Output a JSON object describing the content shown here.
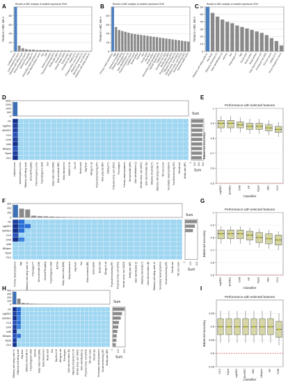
{
  "panels": {
    "A": "A",
    "B": "B",
    "C": "C",
    "D": "D",
    "E": "E",
    "F": "F",
    "G": "G",
    "H": "H",
    "I": "I"
  },
  "chart_data": [
    {
      "id": "A",
      "type": "bar",
      "title": "Results of ABC analysis of variable importance SVM",
      "ylabel": "Times in ABC set A",
      "ylim": [
        0,
        100
      ],
      "yticks": [
        0,
        20,
        40,
        60,
        80
      ],
      "highlight_color": "#4a7fc1",
      "bar_color": "#8a8a8a",
      "categories": [
        "Lobbied score",
        "Land-frequency score",
        "Olfactory self rating scale",
        "Pheno-frequency score",
        "General FA quality",
        "Phenotype PT",
        "Secondary nasal symptoms",
        "Odor discrimination score",
        "Sex",
        "ERI",
        "Roles of physical",
        "Physical functioning (PF)",
        "Bodily pain (BP)",
        "House dust",
        "Mental health (MH)",
        "Grass pollen",
        "Emotional role (RE)",
        "Vitality (VT)",
        "Physical comp. sum (PCS)",
        "Olfactory threshold (T)",
        "Mental comp. sum (MCS)",
        "Olfactory self rating scale #1"
      ],
      "values": [
        100,
        13,
        7,
        5,
        4,
        4,
        3,
        3,
        3,
        3,
        2,
        2,
        2,
        2,
        2,
        2,
        1,
        1,
        1,
        1,
        1,
        1
      ]
    },
    {
      "id": "B",
      "type": "bar",
      "title": "Results of ABC analysis of variable importance SVM",
      "ylabel": "Times in ABC set A",
      "ylim": [
        0,
        100
      ],
      "yticks": [
        0,
        20,
        40,
        60,
        80
      ],
      "highlight_color": "#4a7fc1",
      "bar_color": "#8a8a8a",
      "categories": [
        "Primary nasal symptoms",
        "Age",
        "General FA quality",
        "Olfactory self rating",
        "Phenotype PT",
        "Odor identification (I)",
        "Pheno-frequency score",
        "Lobbied score",
        "Nasal airflow",
        "Asthma",
        "Sex",
        "House dust",
        "Hay fever",
        "Grass pollen",
        "Secondary nasal symptoms",
        "Mental health (MH)",
        "Vitality (VT)",
        "Emotional role (RE)",
        "Bodily pain (BP)",
        "Physical functioning (PF)",
        "Olfactory threshold (T)",
        "Mental comp. sum (MCS)",
        "Physical comp. sum (PCS)",
        "Social functioning (SF)",
        "General health (GH)"
      ],
      "values": [
        100,
        55,
        48,
        46,
        44,
        42,
        40,
        39,
        38,
        37,
        36,
        35,
        34,
        33,
        32,
        31,
        30,
        29,
        28,
        27,
        26,
        25,
        24,
        23,
        22
      ]
    },
    {
      "id": "C",
      "type": "bar",
      "title": "Results of ABC analysis of variable importance SVM",
      "ylabel": "Times in ABC set A",
      "ylim": [
        0,
        60
      ],
      "yticks": [
        0,
        10,
        20,
        30,
        40,
        50,
        60
      ],
      "highlight_color": "#4a7fc1",
      "bar_color": "#8a8a8a",
      "categories": [
        "Olfactory self rating scale #1",
        "Hay fever",
        "Olfactory threshold (T)",
        "Odor identification (I)",
        "Asthma",
        "Sex",
        "Phenotype PT",
        "Age",
        "House dust",
        "Grass pollen",
        "Nasal airflow",
        "Odor discrimination (D)",
        "Emotional role (RE)",
        "TDI sum score",
        "Vitality (VT)",
        "Pheno-frequency score"
      ],
      "values": [
        60,
        52,
        47,
        43,
        40,
        38,
        35,
        33,
        31,
        29,
        27,
        25,
        22,
        18,
        14,
        8
      ]
    },
    {
      "id": "D",
      "type": "heatmap",
      "sum_label": "Sum",
      "rows": [
        "RF",
        "logREG",
        "BinREG",
        "C4.5",
        "SVM",
        "kNN",
        "NBayes",
        "Rpart",
        "C5.0"
      ],
      "yticks": [
        0,
        500,
        1000,
        2000,
        5000
      ],
      "columns": [
        "Lobbied score",
        "Land-frequency score",
        "Olfactory self rating scale",
        "General FA quality",
        "Pheno-frequency score",
        "Psychological in ASA",
        "Sex",
        "Body mass index (BMI)",
        "Role-emotional (RE)",
        "Early blossomers",
        "BMI/DTJX ID",
        "Sex #2",
        "House dust",
        "Hay fever",
        "Allergy to cat",
        "Physical functioning (PF)",
        "Role-physical (RP)",
        "Vitality (VT)",
        "Physical comp. sum (PCS)",
        "Phenotypes",
        "Primary nasal symptoms",
        "Mental health (MH)",
        "Odor identification (I)",
        "Mental comp. sum (MCS)",
        "Odor discrimination (D)",
        "Olfactory threshold (T)",
        "Olfactory self rating scale #1",
        "TDI sum score",
        "Secondary nasal symptoms",
        "Social functioning (SF)",
        "Steroid use",
        "Bodily pain (BP)"
      ],
      "highlighted_column_values": [
        9,
        9,
        9,
        9,
        9,
        9,
        9,
        9,
        9
      ],
      "column_sums": [
        5000,
        40,
        30,
        20,
        15,
        12,
        10,
        8,
        6,
        5,
        4,
        4,
        3,
        3,
        3,
        2,
        2,
        2,
        2,
        2,
        2,
        1,
        1,
        1,
        1,
        1,
        1,
        1,
        1,
        1,
        1,
        1
      ],
      "row_sums": [
        900,
        880,
        860,
        850,
        840,
        830,
        820,
        810,
        800
      ],
      "row_sum_ticks": [
        "0",
        "300",
        "600",
        "900"
      ]
    },
    {
      "id": "E",
      "type": "box",
      "title": "Performance with selected features",
      "xlabel": "Classifier",
      "ylabel": "Balanced accuracy",
      "ylim": [
        0.5,
        1.0
      ],
      "yticks": [
        0.5,
        0.6,
        0.7,
        0.8,
        0.9,
        1.0
      ],
      "chance_level": 0.5,
      "categories": [
        "logREG",
        "BinREG",
        "SVM",
        "RF",
        "Rpart",
        "kNN",
        "C5.0"
      ],
      "medians": [
        0.9,
        0.9,
        0.89,
        0.88,
        0.88,
        0.87,
        0.86
      ],
      "q1": [
        0.87,
        0.87,
        0.87,
        0.86,
        0.86,
        0.85,
        0.84
      ],
      "q3": [
        0.92,
        0.92,
        0.91,
        0.9,
        0.9,
        0.89,
        0.88
      ],
      "whisker_low": [
        0.84,
        0.84,
        0.84,
        0.83,
        0.83,
        0.82,
        0.81
      ],
      "whisker_high": [
        0.95,
        0.95,
        0.94,
        0.93,
        0.93,
        0.92,
        0.91
      ]
    },
    {
      "id": "F",
      "type": "heatmap",
      "sum_label": "Sum",
      "rows": [
        "RF",
        "logREG",
        "BinREG",
        "C4.5",
        "SVM",
        "kNN",
        "NBayes",
        "Rpart",
        "C5.0"
      ],
      "yticks": [
        0,
        100,
        200,
        300
      ],
      "columns": [
        "Primary nasal symptoms",
        "Age",
        "Olfactory self rating scale #1",
        "Phenotype PT",
        "General health (GH)",
        "General FA quality",
        "Psychological in ASA",
        "Asthma",
        "Body mass index (BMI)",
        "Early blossomers",
        "Hay fever",
        "Sex",
        "Role-emotional (RE)",
        "Grass pollen",
        "House dust",
        "Allergy to cat",
        "Physical functioning (PF)",
        "Physical comp. sum (PCS)",
        "Mental comp. sum (MCS)",
        "Bodily pain (BP)",
        "Odor identification (I)",
        "Olfactory threshold (T)",
        "Odor discrimination (D)",
        "Olfactory self rating scale #1",
        "Secondary nasal symptoms",
        "Social functioning (SF)",
        "Steroid use",
        "TDI sum score"
      ],
      "column_sums": [
        300,
        210,
        190,
        40,
        30,
        25,
        20,
        15,
        12,
        10,
        8,
        7,
        6,
        5,
        5,
        4,
        4,
        3,
        3,
        3,
        2,
        2,
        2,
        2,
        1,
        1,
        1,
        1
      ],
      "row_sums": [
        300,
        250,
        200,
        10,
        5,
        5,
        3,
        2,
        2
      ],
      "row_sum_ticks": [
        "0",
        "100",
        "200"
      ]
    },
    {
      "id": "G",
      "type": "box",
      "title": "Performance with selected features",
      "xlabel": "Classifier",
      "ylabel": "Balanced accuracy",
      "ylim": [
        0.5,
        1.0
      ],
      "yticks": [
        0.5,
        0.6,
        0.7,
        0.8,
        0.9,
        1.0
      ],
      "chance_level": 0.5,
      "categories": [
        "logREG",
        "BinREG",
        "SVM",
        "RF",
        "Rpart",
        "kNN",
        "C5.0"
      ],
      "medians": [
        0.83,
        0.83,
        0.83,
        0.82,
        0.8,
        0.79,
        0.78
      ],
      "q1": [
        0.79,
        0.79,
        0.79,
        0.78,
        0.76,
        0.75,
        0.74
      ],
      "q3": [
        0.86,
        0.86,
        0.86,
        0.85,
        0.84,
        0.83,
        0.82
      ],
      "whisker_low": [
        0.75,
        0.75,
        0.75,
        0.74,
        0.72,
        0.71,
        0.7
      ],
      "whisker_high": [
        0.89,
        0.89,
        0.89,
        0.88,
        0.87,
        0.86,
        0.85
      ]
    },
    {
      "id": "H",
      "type": "heatmap",
      "sum_label": "Sum",
      "rows": [
        "RF",
        "logREG",
        "BinREG",
        "C4.5",
        "SVM",
        "kNN",
        "NBayes",
        "Rpart",
        "C5.0"
      ],
      "yticks": [
        0,
        100,
        200,
        300,
        400
      ],
      "columns": [
        "Olfactory self rating scale #1",
        "Olfactory self rating scale",
        "Hay fever",
        "Olfactory threshold (T)",
        "Psychological in ASA",
        "Asthma",
        "Body mass index (BMI)",
        "Early blossomers",
        "House dust",
        "Sex",
        "Hay fever #2",
        "Allergy to cat",
        "Phenotypes",
        "Odor discrimination (D)",
        "Olfactory threshold (T) #2",
        "Mental comp. sum (MCS)",
        "Odor identification (I)",
        "Physical comp. sum (PCS)",
        "TDI sum score",
        "Steroid use",
        "Secondary nasal symptoms",
        "Social functioning (SF)",
        "Bodily pain (BP)"
      ],
      "column_sums": [
        400,
        180,
        40,
        30,
        20,
        15,
        12,
        10,
        8,
        7,
        6,
        5,
        4,
        4,
        3,
        3,
        3,
        2,
        2,
        2,
        1,
        1,
        1
      ],
      "row_sums": [
        380,
        300,
        260,
        200,
        180,
        150,
        130,
        120,
        100
      ],
      "row_sum_ticks": [
        "0",
        "100",
        "200"
      ]
    },
    {
      "id": "I",
      "type": "box",
      "title": "Performance with selected features",
      "xlabel": "Classifier",
      "ylabel": "Balanced accuracy",
      "ylim": [
        0.45,
        0.7
      ],
      "yticks": [
        0.45,
        0.5,
        0.55,
        0.6,
        0.65
      ],
      "chance_level": 0.5,
      "categories": [
        "C5.0",
        "Rpart",
        "logREG",
        "BinREG",
        "kNN",
        "NBayes",
        "RF",
        "SVM"
      ],
      "medians": [
        0.6,
        0.6,
        0.6,
        0.6,
        0.6,
        0.6,
        0.6,
        0.59
      ],
      "q1": [
        0.57,
        0.57,
        0.57,
        0.57,
        0.57,
        0.57,
        0.57,
        0.56
      ],
      "q3": [
        0.63,
        0.63,
        0.63,
        0.63,
        0.63,
        0.63,
        0.63,
        0.62
      ],
      "whisker_low": [
        0.54,
        0.54,
        0.54,
        0.54,
        0.54,
        0.54,
        0.54,
        0.53
      ],
      "whisker_high": [
        0.66,
        0.66,
        0.66,
        0.66,
        0.66,
        0.66,
        0.66,
        0.65
      ]
    }
  ]
}
